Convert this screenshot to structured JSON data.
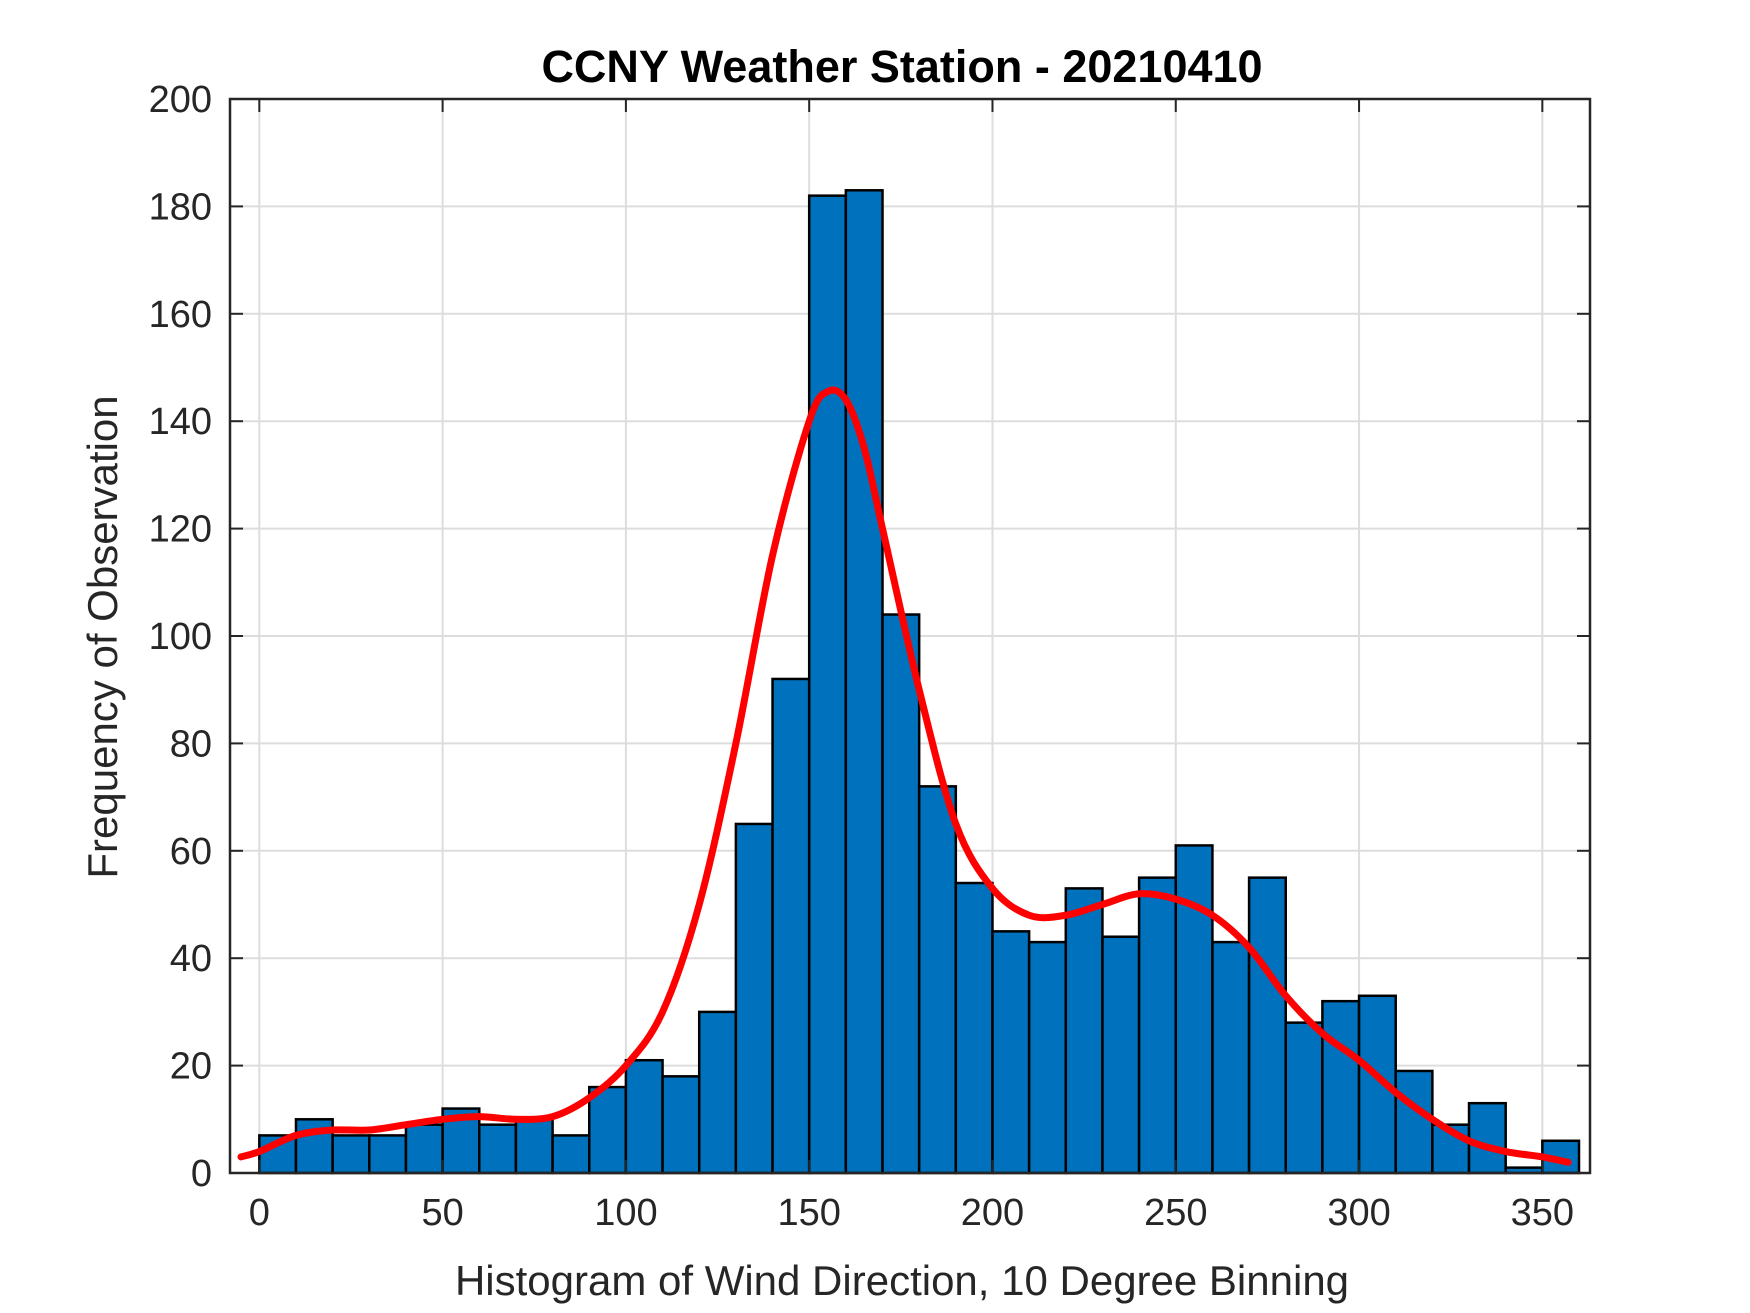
{
  "chart_data": {
    "type": "bar",
    "title": "CCNY Weather Station - 20210410",
    "xlabel": "Histogram of Wind Direction, 10 Degree Binning",
    "ylabel": "Frequency of Observation",
    "xlim": [
      -8,
      363
    ],
    "ylim": [
      0,
      200
    ],
    "grid": true,
    "x_ticks": [
      0,
      50,
      100,
      150,
      200,
      250,
      300,
      350
    ],
    "y_ticks": [
      0,
      20,
      40,
      60,
      80,
      100,
      120,
      140,
      160,
      180,
      200
    ],
    "bin_width": 10,
    "bin_edges": [
      0,
      10,
      20,
      30,
      40,
      50,
      60,
      70,
      80,
      90,
      100,
      110,
      120,
      130,
      140,
      150,
      160,
      170,
      180,
      190,
      200,
      210,
      220,
      230,
      240,
      250,
      260,
      270,
      280,
      290,
      300,
      310,
      320,
      330,
      340,
      350,
      360
    ],
    "values": [
      7,
      10,
      7,
      7,
      9,
      12,
      9,
      10,
      7,
      16,
      21,
      18,
      30,
      65,
      92,
      182,
      183,
      104,
      72,
      54,
      45,
      43,
      53,
      44,
      55,
      61,
      43,
      55,
      28,
      32,
      33,
      19,
      9,
      13,
      1,
      6
    ],
    "fit_curve": {
      "x": [
        -5,
        0,
        10,
        20,
        30,
        40,
        50,
        60,
        70,
        80,
        90,
        100,
        110,
        120,
        130,
        140,
        150,
        155,
        160,
        165,
        170,
        180,
        190,
        200,
        210,
        220,
        230,
        240,
        250,
        260,
        270,
        280,
        290,
        300,
        310,
        320,
        330,
        340,
        350,
        357
      ],
      "y": [
        3,
        4,
        7,
        8,
        8,
        9,
        10,
        10.5,
        10,
        10.5,
        14,
        20,
        30,
        50,
        80,
        115,
        140,
        145.5,
        144,
        135,
        120,
        90,
        65,
        53,
        48,
        48,
        50,
        52,
        51,
        48,
        42,
        33,
        26,
        21,
        15,
        10,
        6,
        4,
        3,
        2
      ]
    }
  }
}
